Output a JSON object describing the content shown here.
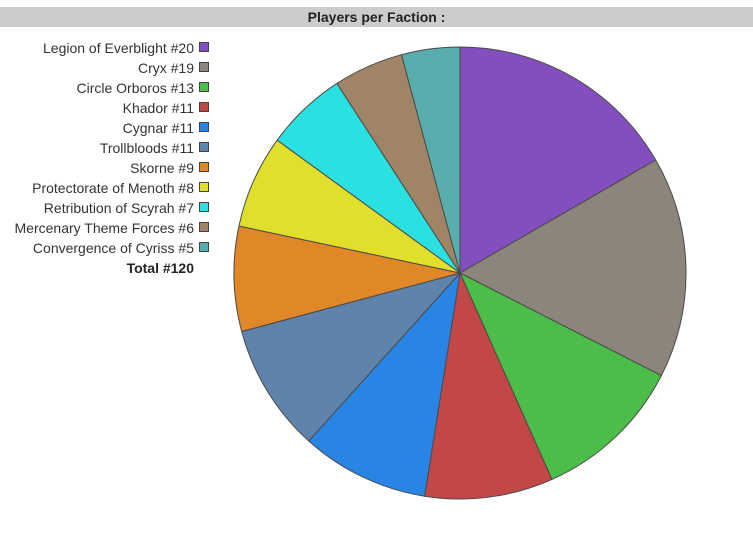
{
  "chart_data": {
    "type": "pie",
    "title": "Players per Faction :",
    "slices": [
      {
        "label": "Legion of Everblight #20",
        "value": 20,
        "color": "#834fbe"
      },
      {
        "label": "Cryx #19",
        "value": 19,
        "color": "#8c857b"
      },
      {
        "label": "Circle Orboros #13",
        "value": 13,
        "color": "#4dbd4a"
      },
      {
        "label": "Khador #11",
        "value": 11,
        "color": "#c24848"
      },
      {
        "label": "Cygnar #11",
        "value": 11,
        "color": "#2985e3"
      },
      {
        "label": "Trollbloods #11",
        "value": 11,
        "color": "#5f83aa"
      },
      {
        "label": "Skorne #9",
        "value": 9,
        "color": "#e08827"
      },
      {
        "label": "Protectorate of Menoth #8",
        "value": 8,
        "color": "#e0e02c"
      },
      {
        "label": "Retribution of Scyrah #7",
        "value": 7,
        "color": "#2ae0e0"
      },
      {
        "label": "Mercenary Theme Forces #6",
        "value": 6,
        "color": "#a08466"
      },
      {
        "label": "Convergence of Cyriss #5",
        "value": 5,
        "color": "#58adad"
      }
    ],
    "total_label": "Total #120",
    "legend_position": "left"
  }
}
